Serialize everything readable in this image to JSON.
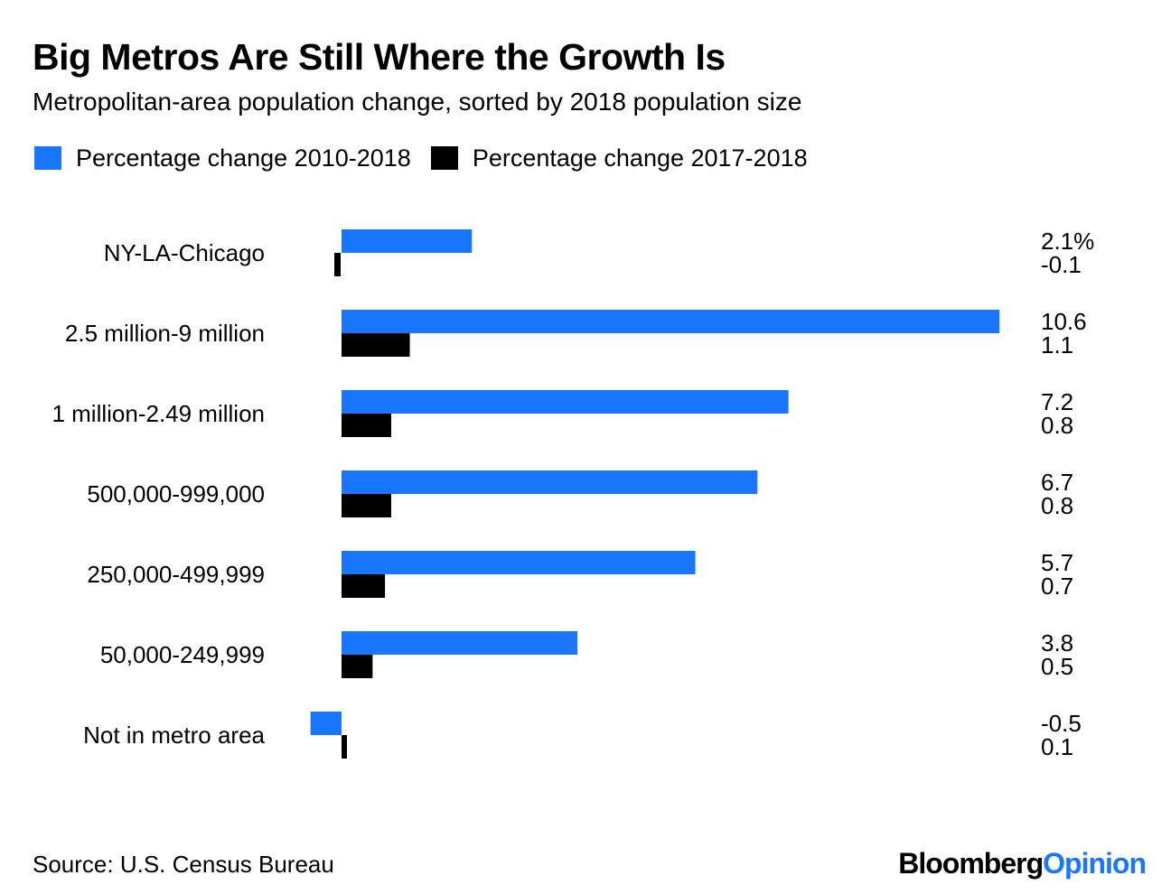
{
  "chart_data": {
    "type": "bar",
    "orientation": "horizontal",
    "title": "Big Metros Are Still Where the Growth Is",
    "subtitle": "Metropolitan-area population change, sorted by 2018 population size",
    "categories": [
      "NY-LA-Chicago",
      "2.5 million-9 million",
      "1 million-2.49 million",
      "500,000-999,000",
      "250,000-499,999",
      "50,000-249,999",
      "Not in metro area"
    ],
    "series": [
      {
        "name": "Percentage change 2010-2018",
        "color": "#1a75ff",
        "values": [
          2.1,
          10.6,
          7.2,
          6.7,
          5.7,
          3.8,
          -0.5
        ],
        "labels": [
          "2.1%",
          "10.6",
          "7.2",
          "6.7",
          "5.7",
          "3.8",
          "-0.5"
        ]
      },
      {
        "name": "Percentage change 2017-2018",
        "color": "#000000",
        "values": [
          -0.1,
          1.1,
          0.8,
          0.8,
          0.7,
          0.5,
          0.1
        ],
        "labels": [
          "-0.1",
          "1.1",
          "0.8",
          "0.8",
          "0.7",
          "0.5",
          "0.1"
        ]
      }
    ],
    "xlim": [
      -0.5,
      10.6
    ],
    "grid": false,
    "legend_position": "top-left"
  },
  "footer": {
    "source": "Source: U.S. Census Bureau",
    "logo_primary": "Bloomberg",
    "logo_secondary": "Opinion"
  },
  "colors": {
    "logo_accent": "#1a75ff"
  }
}
